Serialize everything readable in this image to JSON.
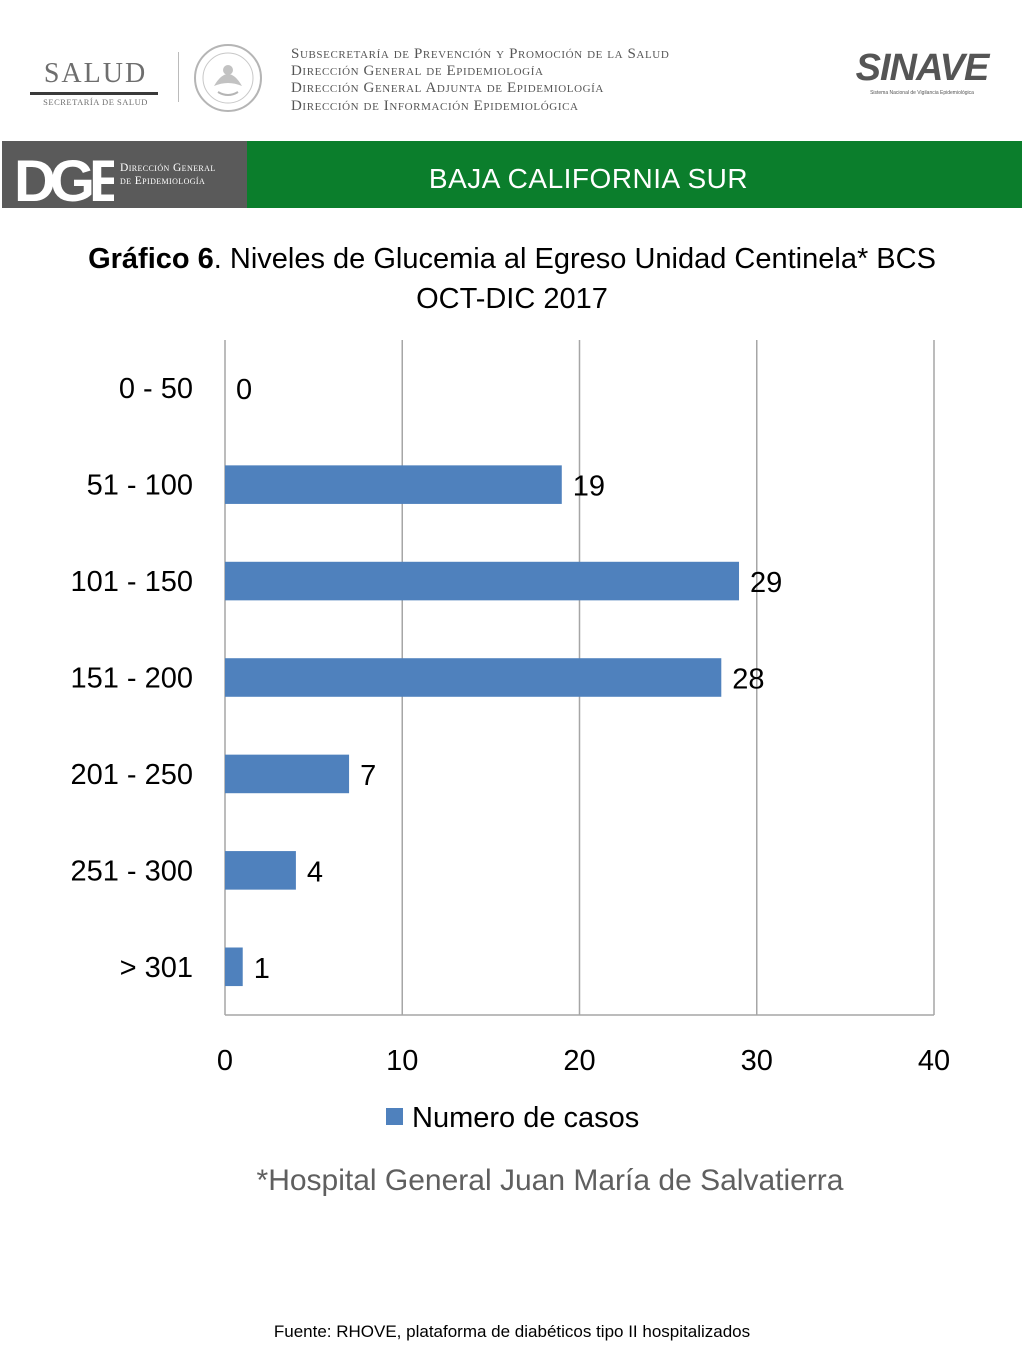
{
  "header": {
    "salud_word": "SALUD",
    "salud_sub": "SECRETARÍA DE SALUD",
    "lines": [
      "Subsecretaría de Prevención y Promoción de la Salud",
      "Dirección General de Epidemiología",
      "Dirección General Adjunta de Epidemiología",
      "Dirección de Información Epidemiológica"
    ],
    "sinave_word": "SINAVE",
    "sinave_sub": "Sistema Nacional de Vigilancia Epidemiológica"
  },
  "banner": {
    "dge_mark": "DGE",
    "dge_line1": "Dirección General",
    "dge_line2": "de Epidemiología",
    "state": "BAJA CALIFORNIA SUR",
    "dark_color": "#5a5a5a",
    "green_color": "#0b7e2c"
  },
  "chart_data": {
    "type": "bar",
    "orientation": "horizontal",
    "title_bold": "Gráfico 6",
    "title_rest": ". Niveles de Glucemia al Egreso  Unidad Centinela* BCS",
    "title_line2": "OCT-DIC 2017",
    "categories": [
      "0 - 50",
      "51 - 100",
      "101 - 150",
      "151 - 200",
      "201 - 250",
      "251 - 300",
      "> 301"
    ],
    "series": [
      {
        "name": "Numero de casos",
        "values": [
          0,
          19,
          29,
          28,
          7,
          4,
          1
        ],
        "color": "#4f81bd"
      }
    ],
    "xlim": [
      0,
      40
    ],
    "xticks": [
      0,
      10,
      20,
      30,
      40
    ],
    "grid": true,
    "legend": "bottom",
    "data_labels": true
  },
  "footer": {
    "hospital_note": "*Hospital General Juan María de Salvatierra",
    "source": "Fuente: RHOVE, plataforma de diabéticos tipo II hospitalizados"
  }
}
